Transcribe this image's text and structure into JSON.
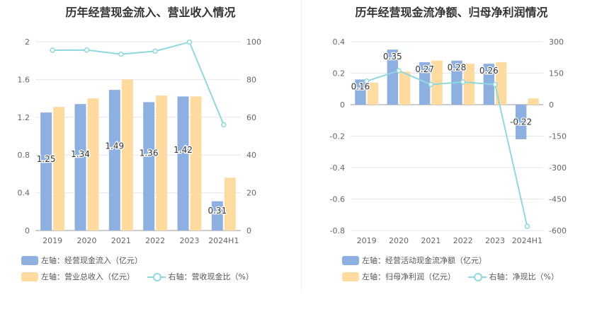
{
  "colors": {
    "bar_primary": "#8eb0e0",
    "bar_secondary": "#ffdba0",
    "line": "#8fd8dc",
    "grid": "#e6e6e6",
    "axis_text": "#666666"
  },
  "chart_data": [
    {
      "type": "bar",
      "title": "历年经营现金流入、营业收入情况",
      "categories": [
        "2019",
        "2020",
        "2021",
        "2022",
        "2023",
        "2024H1"
      ],
      "series": [
        {
          "name": "左轴：经营现金流入（亿元）",
          "axis": "left",
          "kind": "bar",
          "values": [
            1.25,
            1.34,
            1.49,
            1.36,
            1.42,
            0.31
          ],
          "labels": [
            "1.25",
            "1.34",
            "1.49",
            "1.36",
            "1.42",
            "0.31"
          ]
        },
        {
          "name": "左轴：营业总收入（亿元）",
          "axis": "left",
          "kind": "bar",
          "values": [
            1.31,
            1.4,
            1.6,
            1.43,
            1.42,
            0.56
          ]
        },
        {
          "name": "右轴：营收现金比（%）",
          "axis": "right",
          "kind": "line",
          "values": [
            95.5,
            95.6,
            93.4,
            95.0,
            99.8,
            56.0
          ]
        }
      ],
      "left_axis": {
        "min": 0,
        "max": 2,
        "ticks": [
          "0",
          "0.4",
          "0.8",
          "1.2",
          "1.6",
          "2"
        ]
      },
      "right_axis": {
        "min": 0,
        "max": 100,
        "ticks": [
          "0",
          "20",
          "40",
          "60",
          "80",
          "100"
        ]
      },
      "grid": true,
      "legend_position": "bottom-left"
    },
    {
      "type": "bar",
      "title": "历年经营现金流净额、归母净利润情况",
      "categories": [
        "2019",
        "2020",
        "2021",
        "2022",
        "2023",
        "2024H1"
      ],
      "series": [
        {
          "name": "左轴：经营活动现金流净额（亿元）",
          "axis": "left",
          "kind": "bar",
          "values": [
            0.16,
            0.35,
            0.27,
            0.28,
            0.26,
            -0.22
          ],
          "labels": [
            "0.16",
            "0.35",
            "0.27",
            "0.28",
            "0.26",
            "-0.22"
          ]
        },
        {
          "name": "左轴：归母净利润（亿元）",
          "axis": "left",
          "kind": "bar",
          "values": [
            0.14,
            0.21,
            0.28,
            0.26,
            0.27,
            0.04
          ]
        },
        {
          "name": "右轴：净现比（%）",
          "axis": "right",
          "kind": "line",
          "values": [
            112,
            162,
            96,
            108,
            96,
            -580
          ]
        }
      ],
      "left_axis": {
        "min": -0.8,
        "max": 0.4,
        "ticks": [
          "-0.8",
          "-0.6",
          "-0.4",
          "-0.2",
          "0",
          "0.2",
          "0.4"
        ]
      },
      "right_axis": {
        "min": -600,
        "max": 300,
        "ticks": [
          "-600",
          "-450",
          "-300",
          "-150",
          "0",
          "150",
          "300"
        ]
      },
      "grid": true,
      "legend_position": "bottom-left"
    }
  ]
}
